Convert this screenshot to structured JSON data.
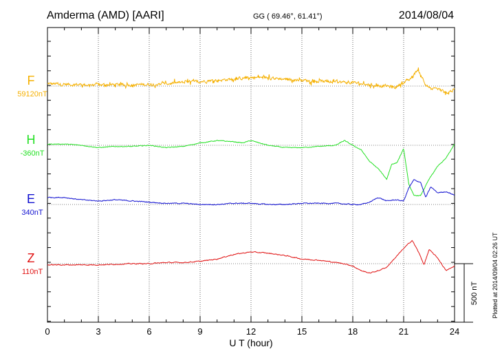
{
  "header": {
    "station": "Amderma (AMD)  [AARI]",
    "coords": "GG ( 69.46°,  61.41°)",
    "date": "2014/08/04"
  },
  "footer": {
    "plotted": "Plotted at 2014/09/04 02:26 UT"
  },
  "chart_data": {
    "type": "line",
    "xlabel": "U T (hour)",
    "xlim": [
      0,
      24
    ],
    "xticks": [
      0,
      3,
      6,
      9,
      12,
      15,
      18,
      21,
      24
    ],
    "grid": true,
    "scale": {
      "label": "500 nT",
      "value_nT": 500
    },
    "series": [
      {
        "name": "F",
        "baseline_label": "59120nT",
        "color": "#f5b000",
        "noise": 20,
        "x": [
          0,
          1,
          2,
          3,
          4,
          5,
          6,
          7,
          8,
          9,
          10,
          11,
          12,
          13,
          14,
          15,
          16,
          17,
          18,
          19,
          20,
          20.5,
          21,
          21.3,
          21.6,
          21.8,
          22,
          22.3,
          22.6,
          23,
          23.5,
          24
        ],
        "y": [
          20,
          15,
          12,
          10,
          12,
          10,
          15,
          20,
          30,
          40,
          50,
          60,
          75,
          70,
          60,
          50,
          40,
          35,
          30,
          10,
          0,
          -10,
          30,
          50,
          90,
          140,
          100,
          20,
          -30,
          -20,
          -60,
          -30
        ]
      },
      {
        "name": "H",
        "baseline_label": "-360nT",
        "color": "#22e022",
        "noise": 5,
        "x": [
          0,
          0.5,
          1,
          2,
          3,
          4,
          5,
          6,
          7,
          8,
          9,
          10,
          11,
          11.5,
          12,
          13,
          14,
          15,
          16,
          17,
          17.5,
          18,
          18.5,
          19,
          19.5,
          20,
          20.3,
          20.6,
          21,
          21.3,
          21.6,
          22,
          22.5,
          23,
          23.5,
          24
        ],
        "y": [
          10,
          10,
          10,
          0,
          -20,
          -10,
          -10,
          0,
          -20,
          -10,
          20,
          40,
          30,
          20,
          40,
          0,
          -20,
          -20,
          -10,
          0,
          40,
          0,
          -40,
          -140,
          -200,
          -290,
          -160,
          -150,
          -30,
          -330,
          -430,
          -430,
          -290,
          -180,
          -110,
          10
        ]
      },
      {
        "name": "E",
        "baseline_label": "340nT",
        "color": "#1010d0",
        "noise": 6,
        "x": [
          0,
          1,
          2,
          3,
          4,
          5,
          6,
          7,
          8,
          9,
          10,
          11,
          12,
          13,
          14,
          15,
          16,
          17,
          18,
          18.5,
          19,
          19.5,
          20,
          20.5,
          21,
          21.3,
          21.6,
          22,
          22.3,
          22.6,
          23,
          23.5,
          24
        ],
        "y": [
          60,
          60,
          40,
          30,
          40,
          30,
          20,
          10,
          10,
          0,
          0,
          10,
          10,
          0,
          0,
          10,
          10,
          10,
          0,
          0,
          20,
          60,
          30,
          40,
          30,
          140,
          210,
          190,
          60,
          150,
          100,
          110,
          80
        ]
      },
      {
        "name": "Z",
        "baseline_label": "110nT",
        "color": "#e01010",
        "noise": 6,
        "x": [
          0,
          1,
          2,
          3,
          4,
          5,
          6,
          7,
          8,
          9,
          10,
          11,
          12,
          13,
          14,
          15,
          16,
          17,
          17.5,
          18,
          18.5,
          19,
          19.5,
          20,
          20.5,
          21,
          21.5,
          21.8,
          22,
          22.2,
          22.5,
          23,
          23.5,
          24
        ],
        "y": [
          -10,
          -10,
          -10,
          -10,
          -5,
          0,
          0,
          10,
          10,
          20,
          40,
          80,
          100,
          90,
          70,
          40,
          30,
          10,
          0,
          -20,
          -60,
          -80,
          -60,
          -30,
          50,
          130,
          200,
          120,
          60,
          -10,
          120,
          50,
          -60,
          -20
        ]
      }
    ]
  }
}
